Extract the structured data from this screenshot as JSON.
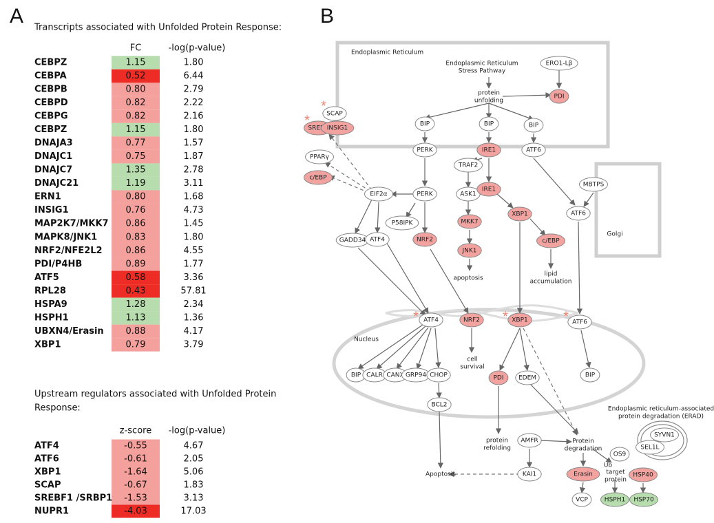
{
  "panel_a": {
    "label": "A",
    "table1": {
      "title": "Transcripts associated with Unfolded Protein Response:",
      "headers": [
        "FC",
        "-log(p-value)"
      ],
      "rows": [
        {
          "gene": "CEBPZ",
          "value": "1.15",
          "p": "1.80",
          "color": "#b7dcae"
        },
        {
          "gene": "CEBPA",
          "value": "0.52",
          "p": "6.44",
          "color": "#ee2c26"
        },
        {
          "gene": "CEBPB",
          "value": "0.80",
          "p": "2.79",
          "color": "#f4a19d"
        },
        {
          "gene": "CEBPD",
          "value": "0.82",
          "p": "2.22",
          "color": "#f4a19d"
        },
        {
          "gene": "CEBPG",
          "value": "0.82",
          "p": "2.16",
          "color": "#f4a19d"
        },
        {
          "gene": "CEBPZ",
          "value": "1.15",
          "p": "1.80",
          "color": "#b7dcae"
        },
        {
          "gene": "DNAJA3",
          "value": "0.77",
          "p": "1.57",
          "color": "#f4a19d"
        },
        {
          "gene": "DNAJC1",
          "value": "0.75",
          "p": "1.87",
          "color": "#f4a19d"
        },
        {
          "gene": "DNAJC7",
          "value": "1.35",
          "p": "2.78",
          "color": "#b7dcae"
        },
        {
          "gene": "DNAJC21",
          "value": "1.19",
          "p": "3.11",
          "color": "#b7dcae"
        },
        {
          "gene": "ERN1",
          "value": "0.80",
          "p": "1.68",
          "color": "#f4a19d"
        },
        {
          "gene": "INSIG1",
          "value": "0.76",
          "p": "4.73",
          "color": "#f4a19d"
        },
        {
          "gene": "MAP2K7/MKK7",
          "value": "0.86",
          "p": "1.45",
          "color": "#f4a19d"
        },
        {
          "gene": "MAPK8/JNK1",
          "value": "0.83",
          "p": "1.80",
          "color": "#f4a19d"
        },
        {
          "gene": "NRF2/NFE2L2",
          "value": "0.86",
          "p": "4.55",
          "color": "#f4a19d"
        },
        {
          "gene": "PDI/P4HB",
          "value": "0.89",
          "p": "1.77",
          "color": "#f4a19d"
        },
        {
          "gene": "ATF5",
          "value": "0.58",
          "p": "3.36",
          "color": "#ee2c26"
        },
        {
          "gene": "RPL28",
          "value": "0.43",
          "p": "57.81",
          "color": "#ee2c26"
        },
        {
          "gene": "HSPA9",
          "value": "1.28",
          "p": "2.34",
          "color": "#b7dcae"
        },
        {
          "gene": "HSPH1",
          "value": "1.13",
          "p": "1.36",
          "color": "#b7dcae"
        },
        {
          "gene": "UBXN4/Erasin",
          "value": "0.88",
          "p": "4.17",
          "color": "#f4a19d"
        },
        {
          "gene": "XBP1",
          "value": "0.79",
          "p": "3.79",
          "color": "#f4a19d"
        }
      ]
    },
    "table2": {
      "title": [
        "Upstream regulators associated with Unfolded Protein",
        "Response:"
      ],
      "headers": [
        "z-score",
        "-log(p-value)"
      ],
      "rows": [
        {
          "gene": "ATF4",
          "value": "-0.55",
          "p": "4.67",
          "color": "#f4a19d"
        },
        {
          "gene": "ATF6",
          "value": "-0.61",
          "p": "2.05",
          "color": "#f4a19d"
        },
        {
          "gene": "XBP1",
          "value": "-1.64",
          "p": "5.06",
          "color": "#f4a19d"
        },
        {
          "gene": "SCAP",
          "value": "-0.67",
          "p": "1.83",
          "color": "#f4a19d"
        },
        {
          "gene": "SREBF1 /SRBP1",
          "value": "-1.53",
          "p": "3.13",
          "color": "#f4a19d"
        },
        {
          "gene": "NUPR1",
          "value": "-4.03",
          "p": "17.03",
          "color": "#ee2c26"
        }
      ]
    }
  },
  "panel_b": {
    "label": "B",
    "asterisk": "*",
    "compartments": [
      "Endoplasmic Reticulum",
      "Golgi",
      "Nucleus"
    ],
    "nodes": [
      {
        "label": "PDI",
        "fill": "#f2a3a0"
      },
      {
        "label": "SCAP",
        "fill": "#ffffff"
      },
      {
        "label": "SREBP",
        "fill": "#f2a3a0"
      },
      {
        "label": "INSIG1",
        "fill": "#f2a3a0"
      },
      {
        "label": "BIP",
        "fill": "#ffffff"
      },
      {
        "label": "BIP",
        "fill": "#ffffff"
      },
      {
        "label": "BIP",
        "fill": "#ffffff"
      },
      {
        "label": "PERK",
        "fill": "#ffffff"
      },
      {
        "label": "IRE1",
        "fill": "#f2a3a0"
      },
      {
        "label": "ATF6",
        "fill": "#ffffff"
      },
      {
        "label": "PPARγ",
        "fill": "#ffffff"
      },
      {
        "label": "TRAF2",
        "fill": "#ffffff"
      },
      {
        "label": "c/EBP",
        "fill": "#f2a3a0"
      },
      {
        "label": "MBTPS",
        "fill": "#ffffff"
      },
      {
        "label": "EIF2α",
        "fill": "#ffffff"
      },
      {
        "label": "PERK",
        "fill": "#ffffff"
      },
      {
        "label": "ASK1",
        "fill": "#ffffff"
      },
      {
        "label": "IRE1",
        "fill": "#f2a3a0"
      },
      {
        "label": "XBP1",
        "fill": "#f2a3a0"
      },
      {
        "label": "ATF6",
        "fill": "#ffffff"
      },
      {
        "label": "P58IPK",
        "fill": "#ffffff"
      },
      {
        "label": "MKK7",
        "fill": "#f2a3a0"
      },
      {
        "label": "c/EBP",
        "fill": "#f2a3a0"
      },
      {
        "label": "GADD34",
        "fill": "#ffffff"
      },
      {
        "label": "ATF4",
        "fill": "#ffffff"
      },
      {
        "label": "NRF2",
        "fill": "#f2a3a0"
      },
      {
        "label": "JNK1",
        "fill": "#f2a3a0"
      },
      {
        "label": "ATF4",
        "fill": "#ffffff"
      },
      {
        "label": "NRF2",
        "fill": "#f2a3a0"
      },
      {
        "label": "XBP1",
        "fill": "#f2a3a0"
      },
      {
        "label": "ATF6",
        "fill": "#ffffff"
      },
      {
        "label": "BIP",
        "fill": "#ffffff"
      },
      {
        "label": "CALR",
        "fill": "#ffffff"
      },
      {
        "label": "CANX",
        "fill": "#ffffff"
      },
      {
        "label": "GRP94",
        "fill": "#ffffff"
      },
      {
        "label": "CHOP",
        "fill": "#ffffff"
      },
      {
        "label": "PDI",
        "fill": "#f2a3a0"
      },
      {
        "label": "EDEM",
        "fill": "#ffffff"
      },
      {
        "label": "BIP",
        "fill": "#ffffff"
      },
      {
        "label": "BCL2",
        "fill": "#ffffff"
      },
      {
        "label": "SYVN1",
        "fill": "#ffffff"
      },
      {
        "label": "SEL1L",
        "fill": "#ffffff"
      },
      {
        "label": "AMFR",
        "fill": "#ffffff"
      },
      {
        "label": "OS9",
        "fill": "#ffffff"
      },
      {
        "label": "HSP40",
        "fill": "#f2a3a0"
      },
      {
        "label": "KAI1",
        "fill": "#ffffff"
      },
      {
        "label": "Erasin",
        "fill": "#f2a3a0"
      },
      {
        "label": "VCP",
        "fill": "#ffffff"
      },
      {
        "label": "HSPH1",
        "fill": "#b7dcae"
      },
      {
        "label": "HSP70",
        "fill": "#b7dcae"
      },
      {
        "label": "ERO1-Lβ",
        "fill": "#ffffff"
      }
    ],
    "notes": [
      {
        "lines": [
          "Endoplasmic Reticulum",
          "Stress Pathway"
        ]
      },
      {
        "lines": [
          "protein",
          "unfolding"
        ]
      },
      {
        "lines": [
          "apoptosis"
        ]
      },
      {
        "lines": [
          "lipid",
          "accumulation"
        ]
      },
      {
        "lines": [
          "cell",
          "survival"
        ]
      },
      {
        "lines": [
          "protein",
          "refolding"
        ]
      },
      {
        "lines": [
          "Protein",
          "degradation"
        ]
      },
      {
        "lines": [
          "Endoplasmic reticulum-associated",
          "protein degradation (ERAD)"
        ]
      },
      {
        "lines": [
          "Ub"
        ]
      },
      {
        "lines": [
          "target",
          "protein"
        ]
      },
      {
        "lines": [
          "Apoptosis"
        ]
      }
    ]
  }
}
